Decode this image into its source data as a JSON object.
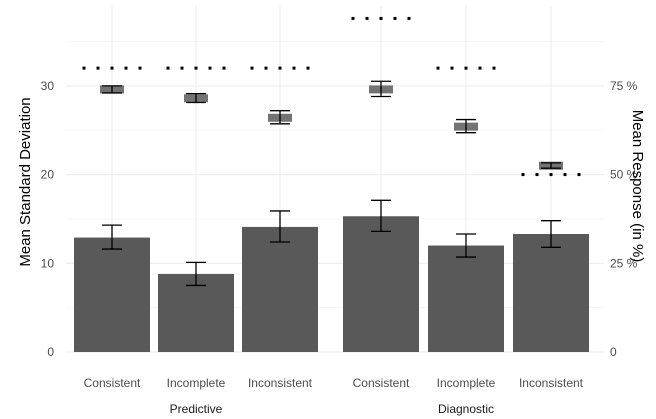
{
  "chart_data": {
    "type": "bar",
    "groups": [
      "Predictive",
      "Diagnostic"
    ],
    "categories": [
      "Consistent",
      "Incomplete",
      "Inconsistent",
      "Consistent",
      "Incomplete",
      "Inconsistent"
    ],
    "category_group": [
      0,
      0,
      0,
      1,
      1,
      1
    ],
    "bar_series": {
      "axis": "left",
      "values": [
        12.9,
        8.8,
        14.1,
        15.3,
        12.0,
        13.3
      ],
      "error_low": [
        11.6,
        7.5,
        12.4,
        13.6,
        10.7,
        11.8
      ],
      "error_high": [
        14.3,
        10.1,
        15.9,
        17.1,
        13.3,
        14.8
      ]
    },
    "box_series": {
      "axis": "right",
      "values": [
        74.0,
        71.5,
        66.0,
        74.0,
        63.5,
        52.5
      ],
      "error_low": [
        73.0,
        70.3,
        64.3,
        72.0,
        61.8,
        51.8
      ],
      "error_high": [
        75.0,
        72.8,
        68.0,
        76.3,
        65.5,
        53.3
      ]
    },
    "dotted_series": {
      "axis": "right",
      "values": [
        80,
        80,
        80,
        94,
        80,
        50
      ]
    },
    "ylabel": "Mean Standard Deviation",
    "y2label": "Mean Response (in %)",
    "ylim": [
      0,
      39
    ],
    "y2lim": [
      0,
      97.5
    ],
    "yticks": [
      "0",
      "10",
      "20",
      "30"
    ],
    "y2ticks": [
      "0",
      "25 %",
      "50 %",
      "75 %"
    ],
    "colors": {
      "bar": "#595959",
      "box": "#737373",
      "error": "#000000",
      "dots": "#000000",
      "grid": "#ebebeb"
    },
    "grid": true,
    "legend": "none"
  }
}
